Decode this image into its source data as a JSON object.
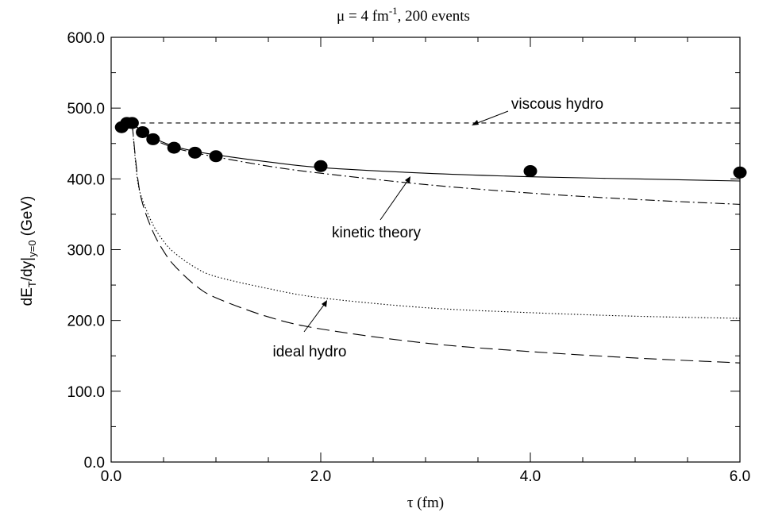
{
  "chart_data": {
    "type": "line",
    "title": {
      "mu": "μ = 4 fm",
      "mu_exp": "-1",
      "events": ", 200 events"
    },
    "xlabel": "τ (fm)",
    "ylabel": {
      "part1": "dE",
      "sub1": "T",
      "part2": "/dy|",
      "sub2": "y=0",
      "part3": " (GeV)"
    },
    "xlim": [
      0,
      6
    ],
    "ylim": [
      0,
      600
    ],
    "x_ticks": [
      0,
      2,
      4,
      6
    ],
    "x_tick_labels": [
      "0.0",
      "2.0",
      "4.0",
      "6.0"
    ],
    "y_ticks": [
      0,
      100,
      200,
      300,
      400,
      500,
      600
    ],
    "y_tick_labels": [
      "0.0",
      "100.0",
      "200.0",
      "300.0",
      "400.0",
      "500.0",
      "600.0"
    ],
    "grid": false,
    "series": [
      {
        "name": "viscous hydro",
        "style": "dashed",
        "x": [
          0.2,
          6.0
        ],
        "y": [
          479,
          479
        ]
      },
      {
        "name": "kinetic theory",
        "style": "solid",
        "x": [
          0.2,
          0.3,
          0.4,
          0.6,
          0.8,
          1.0,
          1.5,
          2.0,
          3.0,
          4.0,
          5.0,
          6.0
        ],
        "y": [
          479,
          467,
          458,
          446,
          439,
          434,
          424,
          416,
          408,
          403,
          400,
          397
        ]
      },
      {
        "name": "",
        "style": "dash-dot",
        "x": [
          0.2,
          0.3,
          0.4,
          0.6,
          0.8,
          1.0,
          1.5,
          2.0,
          3.0,
          4.0,
          5.0,
          6.0
        ],
        "y": [
          479,
          466,
          456,
          444,
          437,
          431,
          418,
          408,
          392,
          380,
          371,
          364
        ]
      },
      {
        "name": "ideal hydro",
        "style": "dotted",
        "x": [
          0.2,
          0.25,
          0.3,
          0.4,
          0.5,
          0.6,
          0.8,
          1.0,
          1.5,
          2.0,
          3.0,
          4.0,
          5.0,
          6.0
        ],
        "y": [
          479,
          400,
          370,
          335,
          312,
          296,
          275,
          262,
          245,
          232,
          218,
          211,
          206,
          203
        ]
      },
      {
        "name": "",
        "style": "long-dashed",
        "x": [
          0.2,
          0.25,
          0.3,
          0.4,
          0.5,
          0.6,
          0.8,
          1.0,
          1.5,
          2.0,
          3.0,
          4.0,
          5.0,
          6.0
        ],
        "y": [
          479,
          405,
          365,
          325,
          298,
          278,
          250,
          232,
          205,
          188,
          168,
          156,
          147,
          140
        ]
      },
      {
        "name": "",
        "style": "points",
        "x": [
          0.1,
          0.15,
          0.2,
          0.3,
          0.4,
          0.6,
          0.8,
          1.0,
          2.0,
          4.0,
          6.0
        ],
        "y": [
          473,
          479,
          479,
          466,
          456,
          444,
          437,
          432,
          418,
          411,
          409
        ]
      }
    ],
    "annotations": [
      {
        "text": "viscous hydro",
        "arrow_to": [
          3.45,
          479
        ]
      },
      {
        "text": "kinetic theory",
        "arrow_to": [
          2.85,
          407
        ]
      },
      {
        "text": "ideal hydro",
        "arrow_to": [
          2.05,
          230
        ]
      }
    ]
  }
}
